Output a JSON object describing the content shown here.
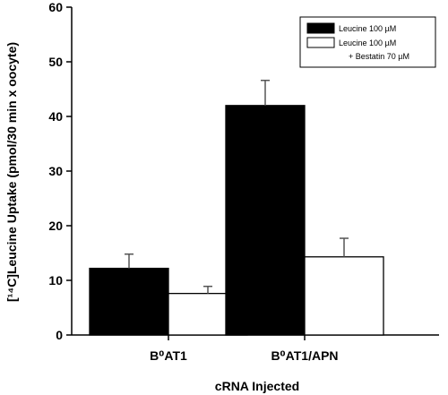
{
  "chart_data": {
    "type": "bar",
    "categories": [
      "B⁰AT1",
      "B⁰AT1/APN"
    ],
    "series": [
      {
        "name": "Leucine 100 µM",
        "values": [
          12.2,
          42
        ],
        "errors": [
          2.6,
          4.6
        ],
        "color": "#000000"
      },
      {
        "name": "Leucine 100 µM + Bestatin 70 µM",
        "values": [
          7.6,
          14.3
        ],
        "errors": [
          1.3,
          3.4
        ],
        "color": "#ffffff"
      }
    ],
    "legend_lines": [
      [
        "Leucine 100 µM"
      ],
      [
        "Leucine 100 µM",
        "+ Bestatin 70 µM"
      ]
    ],
    "xlabel": "cRNA Injected",
    "ylabel": "[¹⁴C]Leucine Uptake (pmol/30 min x oocyte)",
    "ylim": [
      0,
      60
    ],
    "yticks": [
      0,
      10,
      20,
      30,
      40,
      50,
      60
    ],
    "grid": false,
    "legend_position": "top-right"
  }
}
